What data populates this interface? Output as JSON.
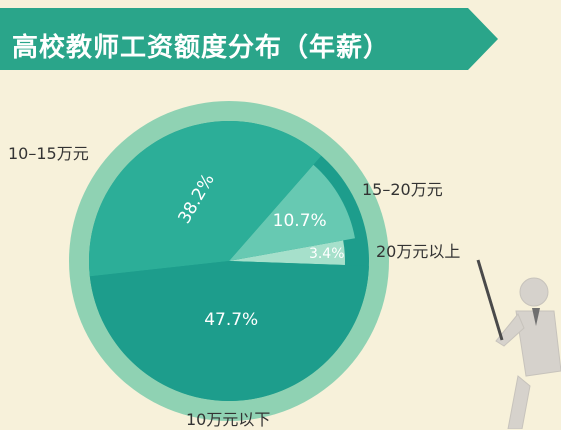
{
  "title": "高校教师工资额度分布（年薪）",
  "colors": {
    "background": "#f7f1da",
    "title_band": "#2aa58a",
    "outer_ring": "#8fd2b3",
    "slice_lt10": "#1d9d8c",
    "slice_10_15": "#2cae98",
    "slice_15_20": "#67c9b2",
    "slice_20plus": "#a6e0cb"
  },
  "chart_data": {
    "type": "pie",
    "title": "高校教师工资额度分布（年薪）",
    "slices": [
      {
        "label": "10万元以下",
        "value": 47.7,
        "value_label": "47.7%"
      },
      {
        "label": "10–15万元",
        "value": 38.2,
        "value_label": "38.2%"
      },
      {
        "label": "15–20万元",
        "value": 10.7,
        "value_label": "10.7%"
      },
      {
        "label": "20万元以上",
        "value": 3.4,
        "value_label": "3.4%"
      }
    ]
  }
}
